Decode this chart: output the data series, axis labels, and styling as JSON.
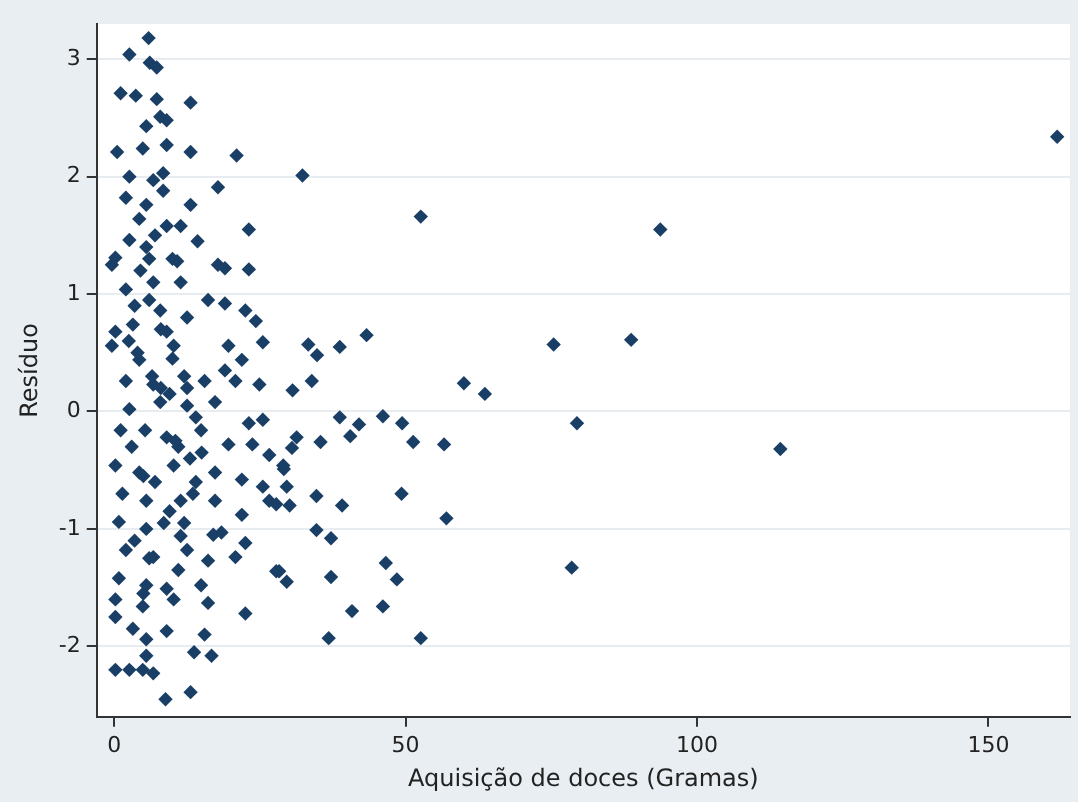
{
  "chart_data": {
    "type": "scatter",
    "xlabel": "Aquisição de doces (Gramas)",
    "ylabel": "Resíduo",
    "xlim": [
      -3,
      164
    ],
    "xticks": [
      0,
      50,
      100,
      150
    ],
    "ylim": [
      -2.6,
      3.3
    ],
    "yticks": [
      -2,
      -1,
      0,
      1,
      2,
      3
    ],
    "grid": "y",
    "marker": "diamond",
    "legend": false,
    "series": [
      {
        "color": "#1a3f66",
        "x": [
          161.8,
          32.3,
          52.6,
          93.7,
          43.3,
          38.7,
          33.3,
          34.8,
          75.4,
          88.7,
          60,
          63.6,
          30.6,
          33.9,
          46.1,
          49.4,
          38.7,
          42,
          40.5,
          51.3,
          56.6,
          79.4,
          114.3,
          35.4,
          49.3,
          34.7,
          39.1,
          57,
          34.7,
          37.2,
          46.6,
          48.5,
          37.2,
          78.5,
          40.8,
          46.1,
          36.8,
          52.6,
          30.5,
          31.3,
          29.1,
          29.6,
          27.8,
          30.1,
          28.3,
          29.6,
          5.9,
          2.6,
          6.1,
          7.3,
          1.1,
          3.7,
          7.3,
          13.1,
          5.5,
          7.9,
          9,
          0.5,
          4.9,
          9,
          13.1,
          21,
          2.6,
          6.7,
          8.4,
          17.8,
          2,
          5.5,
          8.4,
          13.1,
          4.3,
          9,
          11.4,
          23.1,
          2.6,
          5.5,
          14.3,
          -0.4,
          0.2,
          10.8,
          17.8,
          19,
          23.1,
          2,
          6.7,
          11.4,
          16.1,
          19,
          22.5,
          24.3,
          25.5,
          0.2,
          3.2,
          7.9,
          9,
          -0.4,
          4.3,
          10.2,
          19.6,
          21.9,
          19,
          20.8,
          24.9,
          2,
          6.7,
          12.5,
          15.5,
          2.6,
          7.9,
          12.5,
          17.3,
          23.1,
          25.5,
          1.1,
          5.3,
          9,
          14.9,
          19.6,
          23.7,
          26.6,
          29,
          0.2,
          4.3,
          10.2,
          17.3,
          21.9,
          25.5,
          1.4,
          5.5,
          11.4,
          17.3,
          21.9,
          26.6,
          0.8,
          5.5,
          11.4,
          18.4,
          22.5,
          27.8,
          2,
          6.7,
          12.5,
          16.1,
          20.8,
          0.8,
          5.5,
          9,
          14.9,
          0.2,
          4.9,
          10.2,
          16.1,
          22.5,
          0.2,
          3.2,
          5.5,
          9,
          15.5,
          5.5,
          13.7,
          16.7,
          0.2,
          2.6,
          4.9,
          6.7,
          8.8,
          13.1,
          3.5,
          6,
          8,
          10,
          12,
          14,
          4,
          6.5,
          9.5,
          11,
          13,
          3,
          5,
          7,
          9.5,
          12,
          15,
          3.5,
          6,
          8.5,
          11,
          14,
          17,
          4.5,
          7,
          10,
          12.5,
          2.5,
          6,
          8,
          10.5,
          13.5,
          5
        ],
        "values": [
          2.34,
          2.01,
          1.66,
          1.55,
          0.65,
          0.55,
          0.57,
          0.48,
          0.57,
          0.61,
          0.24,
          0.15,
          0.18,
          0.26,
          -0.04,
          -0.1,
          -0.05,
          -0.11,
          -0.21,
          -0.26,
          -0.28,
          -0.1,
          -0.32,
          -0.26,
          -0.7,
          -0.72,
          -0.8,
          -0.91,
          -1.01,
          -1.08,
          -1.29,
          -1.43,
          -1.41,
          -1.33,
          -1.7,
          -1.66,
          -1.93,
          -1.93,
          -0.31,
          -0.22,
          -0.49,
          -0.64,
          -0.79,
          -0.8,
          -1.36,
          -1.45,
          3.18,
          3.04,
          2.97,
          2.93,
          2.71,
          2.69,
          2.66,
          2.63,
          2.43,
          2.51,
          2.48,
          2.21,
          2.24,
          2.27,
          2.21,
          2.18,
          2,
          1.97,
          2.03,
          1.91,
          1.82,
          1.76,
          1.88,
          1.76,
          1.64,
          1.58,
          1.58,
          1.55,
          1.46,
          1.4,
          1.45,
          1.25,
          1.31,
          1.28,
          1.25,
          1.22,
          1.21,
          1.04,
          1.1,
          1.1,
          0.95,
          0.92,
          0.86,
          0.77,
          0.59,
          0.68,
          0.74,
          0.86,
          0.68,
          0.56,
          0.44,
          0.56,
          0.56,
          0.44,
          0.35,
          0.26,
          0.23,
          0.26,
          0.23,
          0.2,
          0.26,
          0.02,
          0.08,
          0.05,
          0.08,
          -0.1,
          -0.07,
          -0.16,
          -0.16,
          -0.22,
          -0.16,
          -0.28,
          -0.28,
          -0.37,
          -0.46,
          -0.46,
          -0.52,
          -0.46,
          -0.52,
          -0.58,
          -0.64,
          -0.7,
          -0.76,
          -0.76,
          -0.76,
          -0.88,
          -0.76,
          -0.94,
          -1,
          -1.06,
          -1.03,
          -1.12,
          -1.36,
          -1.18,
          -1.24,
          -1.18,
          -1.27,
          -1.24,
          -1.42,
          -1.48,
          -1.51,
          -1.48,
          -1.6,
          -1.66,
          -1.6,
          -1.63,
          -1.72,
          -1.75,
          -1.85,
          -1.94,
          -1.87,
          -1.9,
          -2.08,
          -2.05,
          -2.08,
          -2.2,
          -2.2,
          -2.2,
          -2.23,
          -2.45,
          -2.39,
          0.9,
          0.95,
          0.7,
          0.45,
          0.3,
          -0.05,
          0.5,
          0.3,
          0.15,
          -0.3,
          -0.4,
          -0.3,
          -0.55,
          -0.6,
          -0.85,
          -0.95,
          -0.35,
          -1.1,
          -1.25,
          -0.95,
          -1.35,
          -0.6,
          -1.05,
          1.2,
          1.5,
          1.3,
          0.8,
          0.6,
          1.3,
          0.2,
          -0.25,
          -0.7,
          -1.55
        ]
      }
    ]
  }
}
